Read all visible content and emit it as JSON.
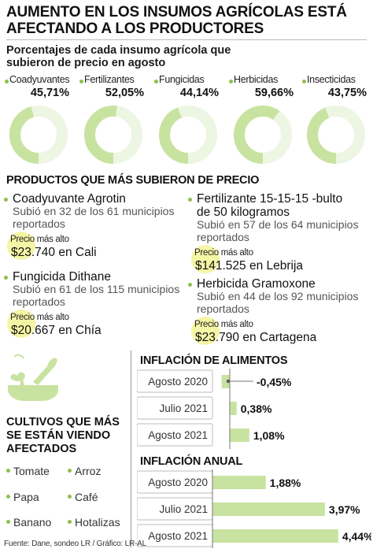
{
  "header": {
    "title": "AUMENTO EN LOS INSUMOS AGRÍCOLAS ESTÁ AFECTANDO A LOS PRODUCTORES",
    "subtitle": "Porcentajes de cada insumo agrícola que subieron de precio en agosto"
  },
  "colors": {
    "accent": "#8fbf4a",
    "bar": "#c8e3a0",
    "donut_light": "#edf5e3",
    "highlight": "#f5f5a6"
  },
  "donuts": [
    {
      "label": "Coadyuvantes",
      "pct_text": "45,71%",
      "value": 45.71
    },
    {
      "label": "Fertilizantes",
      "pct_text": "52,05%",
      "value": 52.05
    },
    {
      "label": "Fungicidas",
      "pct_text": "44,14%",
      "value": 44.14
    },
    {
      "label": "Herbicidas",
      "pct_text": "59,66%",
      "value": 59.66
    },
    {
      "label": "Insecticidas",
      "pct_text": "43,75%",
      "value": 43.75
    }
  ],
  "products": {
    "heading": "PRODUCTOS QUE MÁS SUBIERON DE PRECIO",
    "high_label": "Precio más alto",
    "items": [
      {
        "name_lines": [
          "Coadyuvante Agrotin"
        ],
        "desc_lines": [
          "Subió en 32 de los 61 municipios",
          "reportados"
        ],
        "price": "$23.740",
        "city": "en Cali"
      },
      {
        "name_lines": [
          "Fungicida Dithane"
        ],
        "desc_lines": [
          "Subió en 61 de los 115 municipios",
          "reportados"
        ],
        "price": "$20.667",
        "city": "en Chía"
      },
      {
        "name_lines": [
          "Fertilizante 15-15-15 -bulto",
          "de 50 kilogramos"
        ],
        "desc_lines": [
          "Subió en 57 de los 64 municipios",
          "reportados"
        ],
        "price": "$141.525",
        "city": "en Lebrija"
      },
      {
        "name_lines": [
          "Herbicida Gramoxone"
        ],
        "desc_lines": [
          "Subió en  44 de los 92 municipios",
          "reportados"
        ],
        "price": "$23.790",
        "city": "en Cartagena"
      }
    ]
  },
  "crops": {
    "title": "CULTIVOS QUE MÁS SE ESTÁN VIENDO AFECTADOS",
    "items": [
      "Tomate",
      "Arroz",
      "Papa",
      "Café",
      "Banano",
      "Hotalizas"
    ]
  },
  "source": "Fuente: Dane, sondeo LR / Gráfico: LR-AL",
  "chart_data": [
    {
      "type": "bar",
      "title": "INFLACIÓN DE ALIMENTOS",
      "categories": [
        "Agosto 2020",
        "Julio 2021",
        "Agosto 2021"
      ],
      "values": [
        -0.45,
        0.38,
        1.08
      ],
      "value_labels": [
        "-0,45%",
        "0,38%",
        "1,08%"
      ],
      "orientation": "horizontal"
    },
    {
      "type": "bar",
      "title": "INFLACIÓN ANUAL",
      "categories": [
        "Agosto 2020",
        "Julio 2021",
        "Agosto 2021"
      ],
      "values": [
        1.88,
        3.97,
        4.44
      ],
      "value_labels": [
        "1,88%",
        "3,97%",
        "4,44%"
      ],
      "orientation": "horizontal"
    }
  ]
}
